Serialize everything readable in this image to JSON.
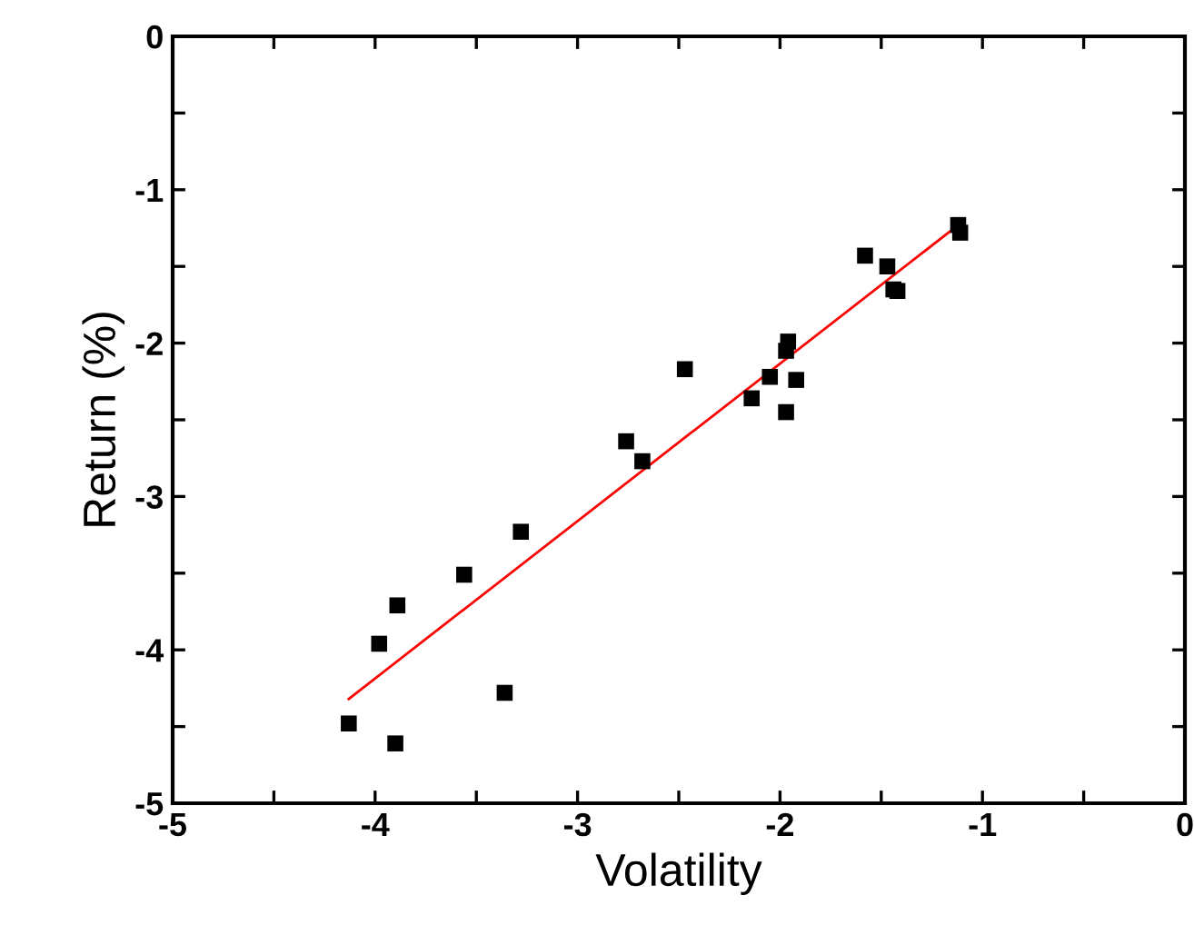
{
  "chart_data": {
    "type": "scatter",
    "xlabel": "Volatility",
    "ylabel": "Return (%)",
    "xlim": [
      -5,
      0
    ],
    "ylim": [
      -5,
      0
    ],
    "xticks": [
      -5,
      {
        "value": -4.5,
        "label": null
      },
      -4,
      {
        "value": -3.5,
        "label": null
      },
      -3,
      {
        "value": -2.5,
        "label": null
      },
      -2,
      {
        "value": -1.5,
        "label": null
      },
      -1,
      {
        "value": -0.5,
        "label": null
      },
      0
    ],
    "yticks": [
      -5,
      {
        "value": -4.5,
        "label": null
      },
      -4,
      {
        "value": -3.5,
        "label": null
      },
      -3,
      {
        "value": -2.5,
        "label": null
      },
      -2,
      {
        "value": -1.5,
        "label": null
      },
      -1,
      {
        "value": -0.5,
        "label": null
      },
      0
    ],
    "grid": false,
    "series": [
      {
        "marker": "square",
        "color": "#000000",
        "x": [
          -4.13,
          -3.9,
          -3.98,
          -3.89,
          -3.56,
          -3.36,
          -3.28,
          -2.76,
          -2.68,
          -2.47,
          -2.14,
          -2.05,
          -1.97,
          -1.96,
          -1.92,
          -1.97,
          -1.58,
          -1.47,
          -1.44,
          -1.42,
          -1.12,
          -1.11
        ],
        "values": [
          -4.48,
          -4.61,
          -3.96,
          -3.71,
          -3.51,
          -4.28,
          -3.23,
          -2.64,
          -2.77,
          -2.17,
          -2.36,
          -2.22,
          -2.05,
          -1.99,
          -2.24,
          -2.45,
          -1.43,
          -1.5,
          -1.65,
          -1.66,
          -1.23,
          -1.28
        ]
      },
      {
        "type": "line",
        "color": "#ff0000",
        "x": [
          -4.13,
          -1.1
        ],
        "values": [
          -4.32,
          -1.21
        ]
      }
    ]
  }
}
